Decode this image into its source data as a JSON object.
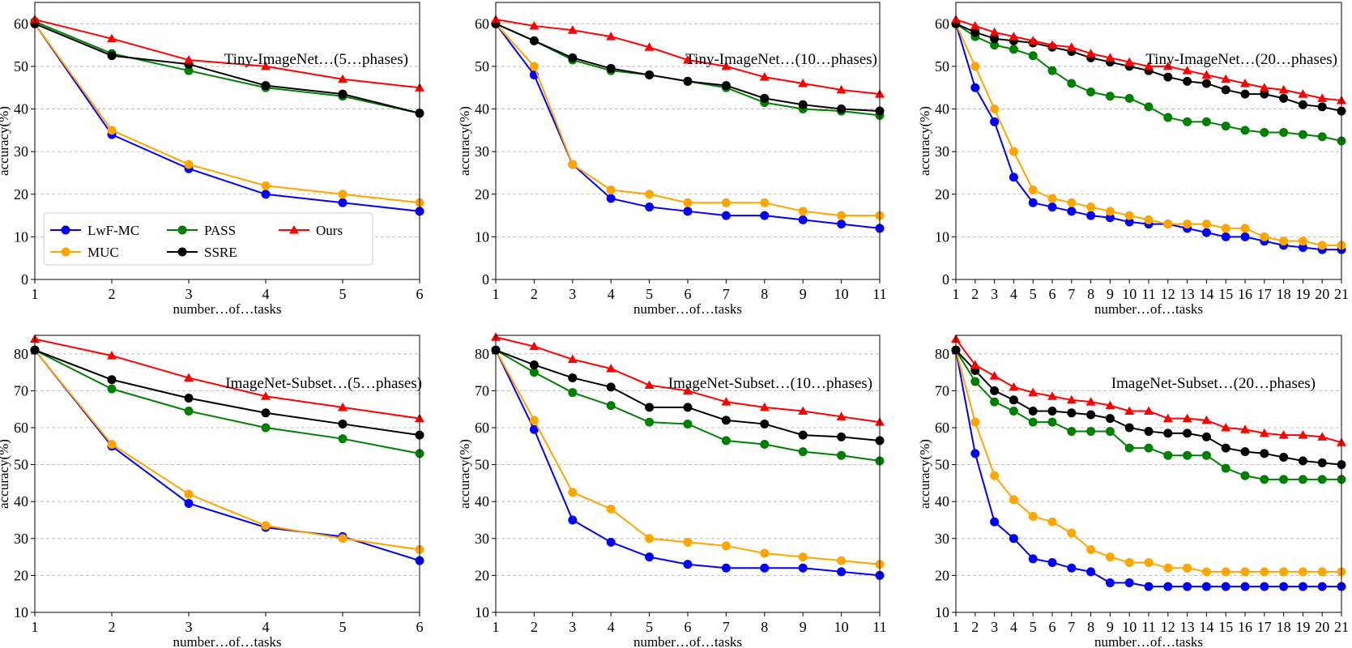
{
  "chart_data": [
    {
      "type": "line",
      "title": "Tiny-ImageNet…(5…phases)",
      "xlabel": "number…of…tasks",
      "ylabel": "accuracy(%)",
      "x": [
        1,
        2,
        3,
        4,
        5,
        6
      ],
      "xlim": [
        1,
        6
      ],
      "ylim": [
        0,
        65
      ],
      "yticks": [
        0,
        10,
        20,
        30,
        40,
        50,
        60
      ],
      "grid": true,
      "legend": true,
      "series": [
        {
          "name": "LwF-MC",
          "values": [
            60,
            34,
            26,
            20,
            18,
            16
          ]
        },
        {
          "name": "MUC",
          "values": [
            60,
            35,
            27,
            22,
            20,
            18
          ]
        },
        {
          "name": "PASS",
          "values": [
            60.5,
            53,
            49,
            45,
            43,
            39
          ]
        },
        {
          "name": "SSRE",
          "values": [
            60,
            52.5,
            50.5,
            45.5,
            43.5,
            39
          ]
        },
        {
          "name": "Ours",
          "values": [
            61,
            56.5,
            51.5,
            50,
            47,
            45
          ]
        }
      ]
    },
    {
      "type": "line",
      "title": "Tiny-ImageNet…(10…phases)",
      "xlabel": "number…of…tasks",
      "ylabel": "accuracy(%)",
      "x": [
        1,
        2,
        3,
        4,
        5,
        6,
        7,
        8,
        9,
        10,
        11
      ],
      "xlim": [
        1,
        11
      ],
      "ylim": [
        0,
        65
      ],
      "yticks": [
        0,
        10,
        20,
        30,
        40,
        50,
        60
      ],
      "grid": true,
      "series": [
        {
          "name": "LwF-MC",
          "values": [
            60,
            48,
            27,
            19,
            17,
            16,
            15,
            15,
            14,
            13,
            12
          ]
        },
        {
          "name": "MUC",
          "values": [
            60,
            50,
            27,
            21,
            20,
            18,
            18,
            18,
            16,
            15,
            15
          ]
        },
        {
          "name": "PASS",
          "values": [
            60,
            56,
            51.5,
            49,
            48,
            46.5,
            45,
            41.5,
            40,
            39.5,
            38.5
          ]
        },
        {
          "name": "SSRE",
          "values": [
            60,
            56,
            52,
            49.5,
            48,
            46.5,
            45.5,
            42.5,
            41,
            40,
            39.5
          ]
        },
        {
          "name": "Ours",
          "values": [
            61,
            59.5,
            58.5,
            57,
            54.5,
            51.5,
            50,
            47.5,
            46,
            44.5,
            43.5
          ]
        }
      ]
    },
    {
      "type": "line",
      "title": "Tiny-ImageNet…(20…phases)",
      "xlabel": "number…of…tasks",
      "ylabel": "accuracy(%)",
      "x": [
        1,
        2,
        3,
        4,
        5,
        6,
        7,
        8,
        9,
        10,
        11,
        12,
        13,
        14,
        15,
        16,
        17,
        18,
        19,
        20,
        21
      ],
      "xlim": [
        1,
        21
      ],
      "ylim": [
        0,
        65
      ],
      "yticks": [
        0,
        10,
        20,
        30,
        40,
        50,
        60
      ],
      "grid": true,
      "series": [
        {
          "name": "LwF-MC",
          "values": [
            60,
            45,
            37,
            24,
            18,
            17,
            16,
            15,
            14.5,
            13.5,
            13,
            13,
            12,
            11,
            10,
            10,
            9,
            8,
            7.5,
            7,
            7
          ]
        },
        {
          "name": "MUC",
          "values": [
            60,
            50,
            40,
            30,
            21,
            19,
            18,
            17,
            16,
            15,
            14,
            13,
            13,
            13,
            12,
            12,
            10,
            9,
            9,
            8,
            8
          ]
        },
        {
          "name": "PASS",
          "values": [
            60,
            57,
            55,
            54,
            52.5,
            49,
            46,
            44,
            43,
            42.5,
            40.5,
            38,
            37,
            37,
            36,
            35,
            34.5,
            34.5,
            34,
            33.5,
            32.5
          ]
        },
        {
          "name": "SSRE",
          "values": [
            60,
            58,
            56.5,
            56,
            55.5,
            54.5,
            53.5,
            52,
            51,
            50,
            49,
            47.5,
            46.5,
            46,
            44.5,
            43.5,
            43.5,
            42.5,
            41,
            40.5,
            39.5
          ]
        },
        {
          "name": "Ours",
          "values": [
            61,
            59.5,
            58,
            57,
            56,
            55,
            54.5,
            53,
            52,
            51,
            50,
            50,
            49,
            48,
            47,
            46,
            45,
            44.5,
            43.5,
            42.5,
            42
          ]
        }
      ]
    },
    {
      "type": "line",
      "title": "ImageNet-Subset…(5…phases)",
      "xlabel": "number…of…tasks",
      "ylabel": "accuracy(%)",
      "x": [
        1,
        2,
        3,
        4,
        5,
        6
      ],
      "xlim": [
        1,
        6
      ],
      "ylim": [
        10,
        85
      ],
      "yticks": [
        10,
        20,
        30,
        40,
        50,
        60,
        70,
        80
      ],
      "grid": true,
      "series": [
        {
          "name": "LwF-MC",
          "values": [
            81,
            55,
            39.5,
            33,
            30.5,
            24
          ]
        },
        {
          "name": "MUC",
          "values": [
            81,
            55.5,
            42,
            33.5,
            30,
            27
          ]
        },
        {
          "name": "PASS",
          "values": [
            81,
            70.5,
            64.5,
            60,
            57,
            53
          ]
        },
        {
          "name": "SSRE",
          "values": [
            81,
            73,
            68,
            64,
            61,
            58
          ]
        },
        {
          "name": "Ours",
          "values": [
            84,
            79.5,
            73.5,
            68.5,
            65.5,
            62.5
          ]
        }
      ]
    },
    {
      "type": "line",
      "title": "ImageNet-Subset…(10…phases)",
      "xlabel": "number…of…tasks",
      "ylabel": "accuracy(%)",
      "x": [
        1,
        2,
        3,
        4,
        5,
        6,
        7,
        8,
        9,
        10,
        11
      ],
      "xlim": [
        1,
        11
      ],
      "ylim": [
        10,
        85
      ],
      "yticks": [
        10,
        20,
        30,
        40,
        50,
        60,
        70,
        80
      ],
      "grid": true,
      "series": [
        {
          "name": "LwF-MC",
          "values": [
            81,
            59.5,
            35,
            29,
            25,
            23,
            22,
            22,
            22,
            21,
            20
          ]
        },
        {
          "name": "MUC",
          "values": [
            81,
            62,
            42.5,
            38,
            30,
            29,
            28,
            26,
            25,
            24,
            23
          ]
        },
        {
          "name": "PASS",
          "values": [
            81,
            75,
            69.5,
            66,
            61.5,
            61,
            56.5,
            55.5,
            53.5,
            52.5,
            51
          ]
        },
        {
          "name": "SSRE",
          "values": [
            81,
            77,
            73.5,
            71,
            65.5,
            65.5,
            62,
            61,
            58,
            57.5,
            56.5
          ]
        },
        {
          "name": "Ours",
          "values": [
            84.5,
            82,
            78.5,
            76,
            71.5,
            70,
            67,
            65.5,
            64.5,
            63,
            61.5
          ]
        }
      ]
    },
    {
      "type": "line",
      "title": "ImageNet-Subset…(20…phases)",
      "xlabel": "number…of…tasks",
      "ylabel": "accuracy(%)",
      "x": [
        1,
        2,
        3,
        4,
        5,
        6,
        7,
        8,
        9,
        10,
        11,
        12,
        13,
        14,
        15,
        16,
        17,
        18,
        19,
        20,
        21
      ],
      "xlim": [
        1,
        21
      ],
      "ylim": [
        10,
        85
      ],
      "yticks": [
        10,
        20,
        30,
        40,
        50,
        60,
        70,
        80
      ],
      "grid": true,
      "series": [
        {
          "name": "LwF-MC",
          "values": [
            81,
            53,
            34.5,
            30,
            24.5,
            23.5,
            22,
            21,
            18,
            18,
            17,
            17,
            17,
            17,
            17,
            17,
            17,
            17,
            17,
            17,
            17
          ]
        },
        {
          "name": "MUC",
          "values": [
            81,
            61.5,
            47,
            40.5,
            36,
            34.5,
            31.5,
            27,
            25,
            23.5,
            23.5,
            22,
            22,
            21,
            21,
            21,
            21,
            21,
            21,
            21,
            21
          ]
        },
        {
          "name": "PASS",
          "values": [
            81,
            72.5,
            67,
            64.5,
            61.5,
            61.5,
            59,
            59,
            59,
            54.5,
            54.5,
            52.5,
            52.5,
            52.5,
            49,
            47,
            46,
            46,
            46,
            46,
            46
          ]
        },
        {
          "name": "SSRE",
          "values": [
            81,
            75.5,
            70,
            67.5,
            64.5,
            64.5,
            64,
            63.5,
            62.5,
            60,
            59,
            58.5,
            58.5,
            57.5,
            54.5,
            53.5,
            53,
            52,
            51,
            50.5,
            50
          ]
        },
        {
          "name": "Ours",
          "values": [
            84,
            77,
            74,
            71,
            69.5,
            68.5,
            67.5,
            67,
            66,
            64.5,
            64.5,
            62.5,
            62.5,
            62,
            60,
            59.5,
            58.5,
            58,
            58,
            57.5,
            56
          ]
        }
      ]
    }
  ],
  "styles": {
    "LwF-MC": {
      "color": "#0000ff",
      "marker": "circle"
    },
    "MUC": {
      "color": "#ffa500",
      "marker": "circle"
    },
    "PASS": {
      "color": "#008000",
      "marker": "circle"
    },
    "SSRE": {
      "color": "#000000",
      "marker": "circle"
    },
    "Ours": {
      "color": "#ff0000",
      "marker": "triangle"
    }
  },
  "grid_color": "#b0b0b0"
}
